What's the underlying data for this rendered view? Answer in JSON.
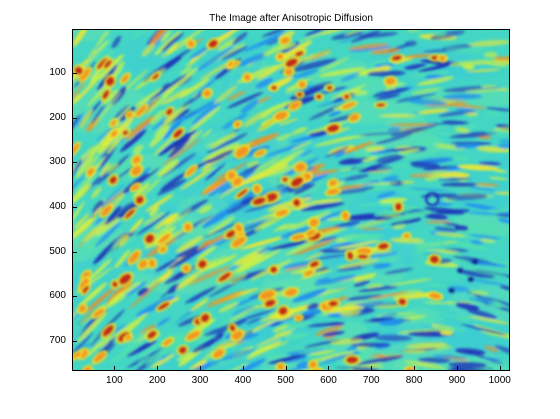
{
  "figure": {
    "title": "The Image after Anisotropic Diffusion",
    "colormap": "jet",
    "palette": [
      "#1d2fb8",
      "#1f8ef0",
      "#3ed0e0",
      "#50e0b0",
      "#c8f048",
      "#f0e830",
      "#f09020",
      "#c0201a"
    ]
  },
  "axes": {
    "x_range": [
      1,
      1024
    ],
    "y_range": [
      1,
      768
    ],
    "y_reversed": true,
    "x_ticks": [
      {
        "value": 100,
        "label": "100"
      },
      {
        "value": 200,
        "label": "200"
      },
      {
        "value": 300,
        "label": "300"
      },
      {
        "value": 400,
        "label": "400"
      },
      {
        "value": 500,
        "label": "500"
      },
      {
        "value": 600,
        "label": "600"
      },
      {
        "value": 700,
        "label": "700"
      },
      {
        "value": 800,
        "label": "800"
      },
      {
        "value": 900,
        "label": "900"
      },
      {
        "value": 1000,
        "label": "1000"
      }
    ],
    "y_ticks": [
      {
        "value": 100,
        "label": "100"
      },
      {
        "value": 200,
        "label": "200"
      },
      {
        "value": 300,
        "label": "300"
      },
      {
        "value": 400,
        "label": "400"
      },
      {
        "value": 500,
        "label": "500"
      },
      {
        "value": 600,
        "label": "600"
      },
      {
        "value": 700,
        "label": "700"
      }
    ]
  }
}
